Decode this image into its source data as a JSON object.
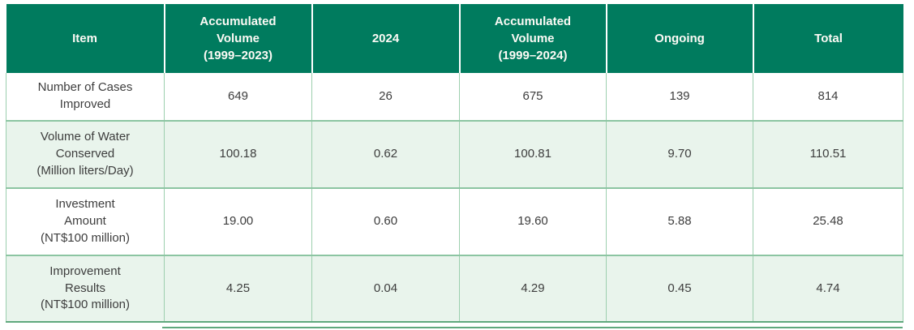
{
  "colors": {
    "header_bg": "#007B5E",
    "header_text": "#FCFAF5",
    "body_text": "#3D3D3D",
    "row_alt_bg": "#E9F4EC",
    "grid_border": "#8CC5A2",
    "bottom_rule": "#5FA87D"
  },
  "chart_data": {
    "type": "table",
    "columns": [
      "Item",
      "Accumulated Volume (1999–2023)",
      "2024",
      "Accumulated Volume (1999–2024)",
      "Ongoing",
      "Total"
    ],
    "rows": [
      {
        "item": "Number of Cases Improved",
        "values": [
          649,
          26,
          675,
          139,
          814
        ]
      },
      {
        "item": "Volume of Water Conserved (Million liters/Day)",
        "values": [
          100.18,
          0.62,
          100.81,
          9.7,
          110.51
        ]
      },
      {
        "item": "Investment Amount (NT$100 million)",
        "values": [
          19.0,
          0.6,
          19.6,
          5.88,
          25.48
        ]
      },
      {
        "item": "Improvement Results (NT$100 million)",
        "values": [
          4.25,
          0.04,
          4.29,
          0.45,
          4.74
        ]
      }
    ]
  },
  "table": {
    "headers": [
      "Item",
      "Accumulated\nVolume\n(1999–2023)",
      "2024",
      "Accumulated\nVolume\n(1999–2024)",
      "Ongoing",
      "Total"
    ],
    "rows": [
      {
        "cells": [
          "Number of Cases\nImproved",
          "649",
          "26",
          "675",
          "139",
          "814"
        ]
      },
      {
        "cells": [
          "Volume of Water\nConserved\n(Million liters/Day)",
          "100.18",
          "0.62",
          "100.81",
          "9.70",
          "110.51"
        ]
      },
      {
        "cells": [
          "Investment\nAmount\n(NT$100 million)",
          "19.00",
          "0.60",
          "19.60",
          "5.88",
          "25.48"
        ]
      },
      {
        "cells": [
          "Improvement\nResults\n(NT$100 million)",
          "4.25",
          "0.04",
          "4.29",
          "0.45",
          "4.74"
        ]
      }
    ]
  }
}
